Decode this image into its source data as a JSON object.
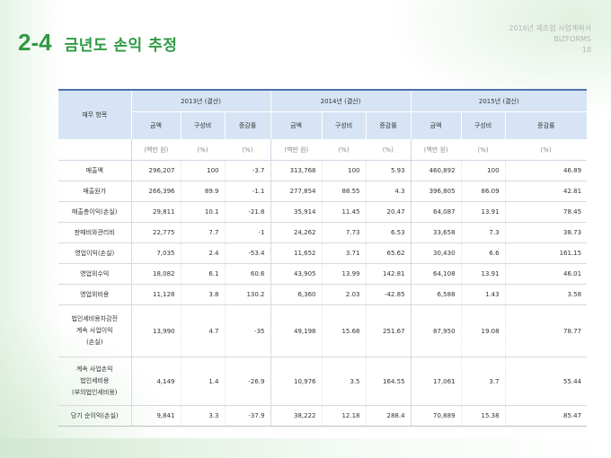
{
  "slide": {
    "section_number": "2-4",
    "title": "금년도 손익 추정",
    "header_line1": "2016년 제조업 사업계획서",
    "header_line2": "BIZFORMS",
    "page_number": "18"
  },
  "table": {
    "row_header_label": "재무 항목",
    "years": [
      "2013년 (결산)",
      "2014년 (결산)",
      "2015년 (결산)"
    ],
    "sub_headers": [
      "금액",
      "구성비",
      "증감률"
    ],
    "units": [
      "(백만 원)",
      "(%)",
      "(%)"
    ],
    "rows": [
      {
        "label": [
          "매출액"
        ],
        "values": [
          "296,207",
          "100",
          "-3.7",
          "313,768",
          "100",
          "5.93",
          "460,892",
          "100",
          "46.89"
        ]
      },
      {
        "label": [
          "매출원가"
        ],
        "values": [
          "266,396",
          "89.9",
          "-1.1",
          "277,854",
          "88.55",
          "4.3",
          "396,805",
          "86.09",
          "42.81"
        ]
      },
      {
        "label": [
          "매출총이익(손실)"
        ],
        "values": [
          "29,811",
          "10.1",
          "-21.8",
          "35,914",
          "11.45",
          "20.47",
          "64,087",
          "13.91",
          "78.45"
        ]
      },
      {
        "label": [
          "판매비와관리비"
        ],
        "values": [
          "22,775",
          "7.7",
          "-1",
          "24,262",
          "7.73",
          "6.53",
          "33,658",
          "7.3",
          "38.73"
        ]
      },
      {
        "label": [
          "영업이익(손실)"
        ],
        "values": [
          "7,035",
          "2.4",
          "-53.4",
          "11,652",
          "3.71",
          "65.62",
          "30,430",
          "6.6",
          "161.15"
        ]
      },
      {
        "label": [
          "영업외수익"
        ],
        "values": [
          "18,082",
          "6.1",
          "60.6",
          "43,905",
          "13.99",
          "142.81",
          "64,108",
          "13.91",
          "46.01"
        ]
      },
      {
        "label": [
          "영업외비용"
        ],
        "values": [
          "11,128",
          "3.8",
          "130.2",
          "6,360",
          "2.03",
          "-42.85",
          "6,588",
          "1.43",
          "3.58"
        ]
      },
      {
        "label": [
          "법인세비용차감전",
          "계속 사업이익",
          "(손실)"
        ],
        "values": [
          "13,990",
          "4.7",
          "-35",
          "49,198",
          "15.68",
          "251.67",
          "87,950",
          "19.08",
          "78.77"
        ]
      },
      {
        "label": [
          "계속 사업손익",
          "법인세비용",
          "(부의법인세비용)"
        ],
        "values": [
          "4,149",
          "1.4",
          "-26.9",
          "10,976",
          "3.5",
          "164.55",
          "17,061",
          "3.7",
          "55.44"
        ]
      },
      {
        "label": [
          "당기 순이익(손실)"
        ],
        "values": [
          "9,841",
          "3.3",
          "-37.9",
          "38,222",
          "12.18",
          "288.4",
          "70,889",
          "15.38",
          "85.47"
        ]
      }
    ]
  }
}
